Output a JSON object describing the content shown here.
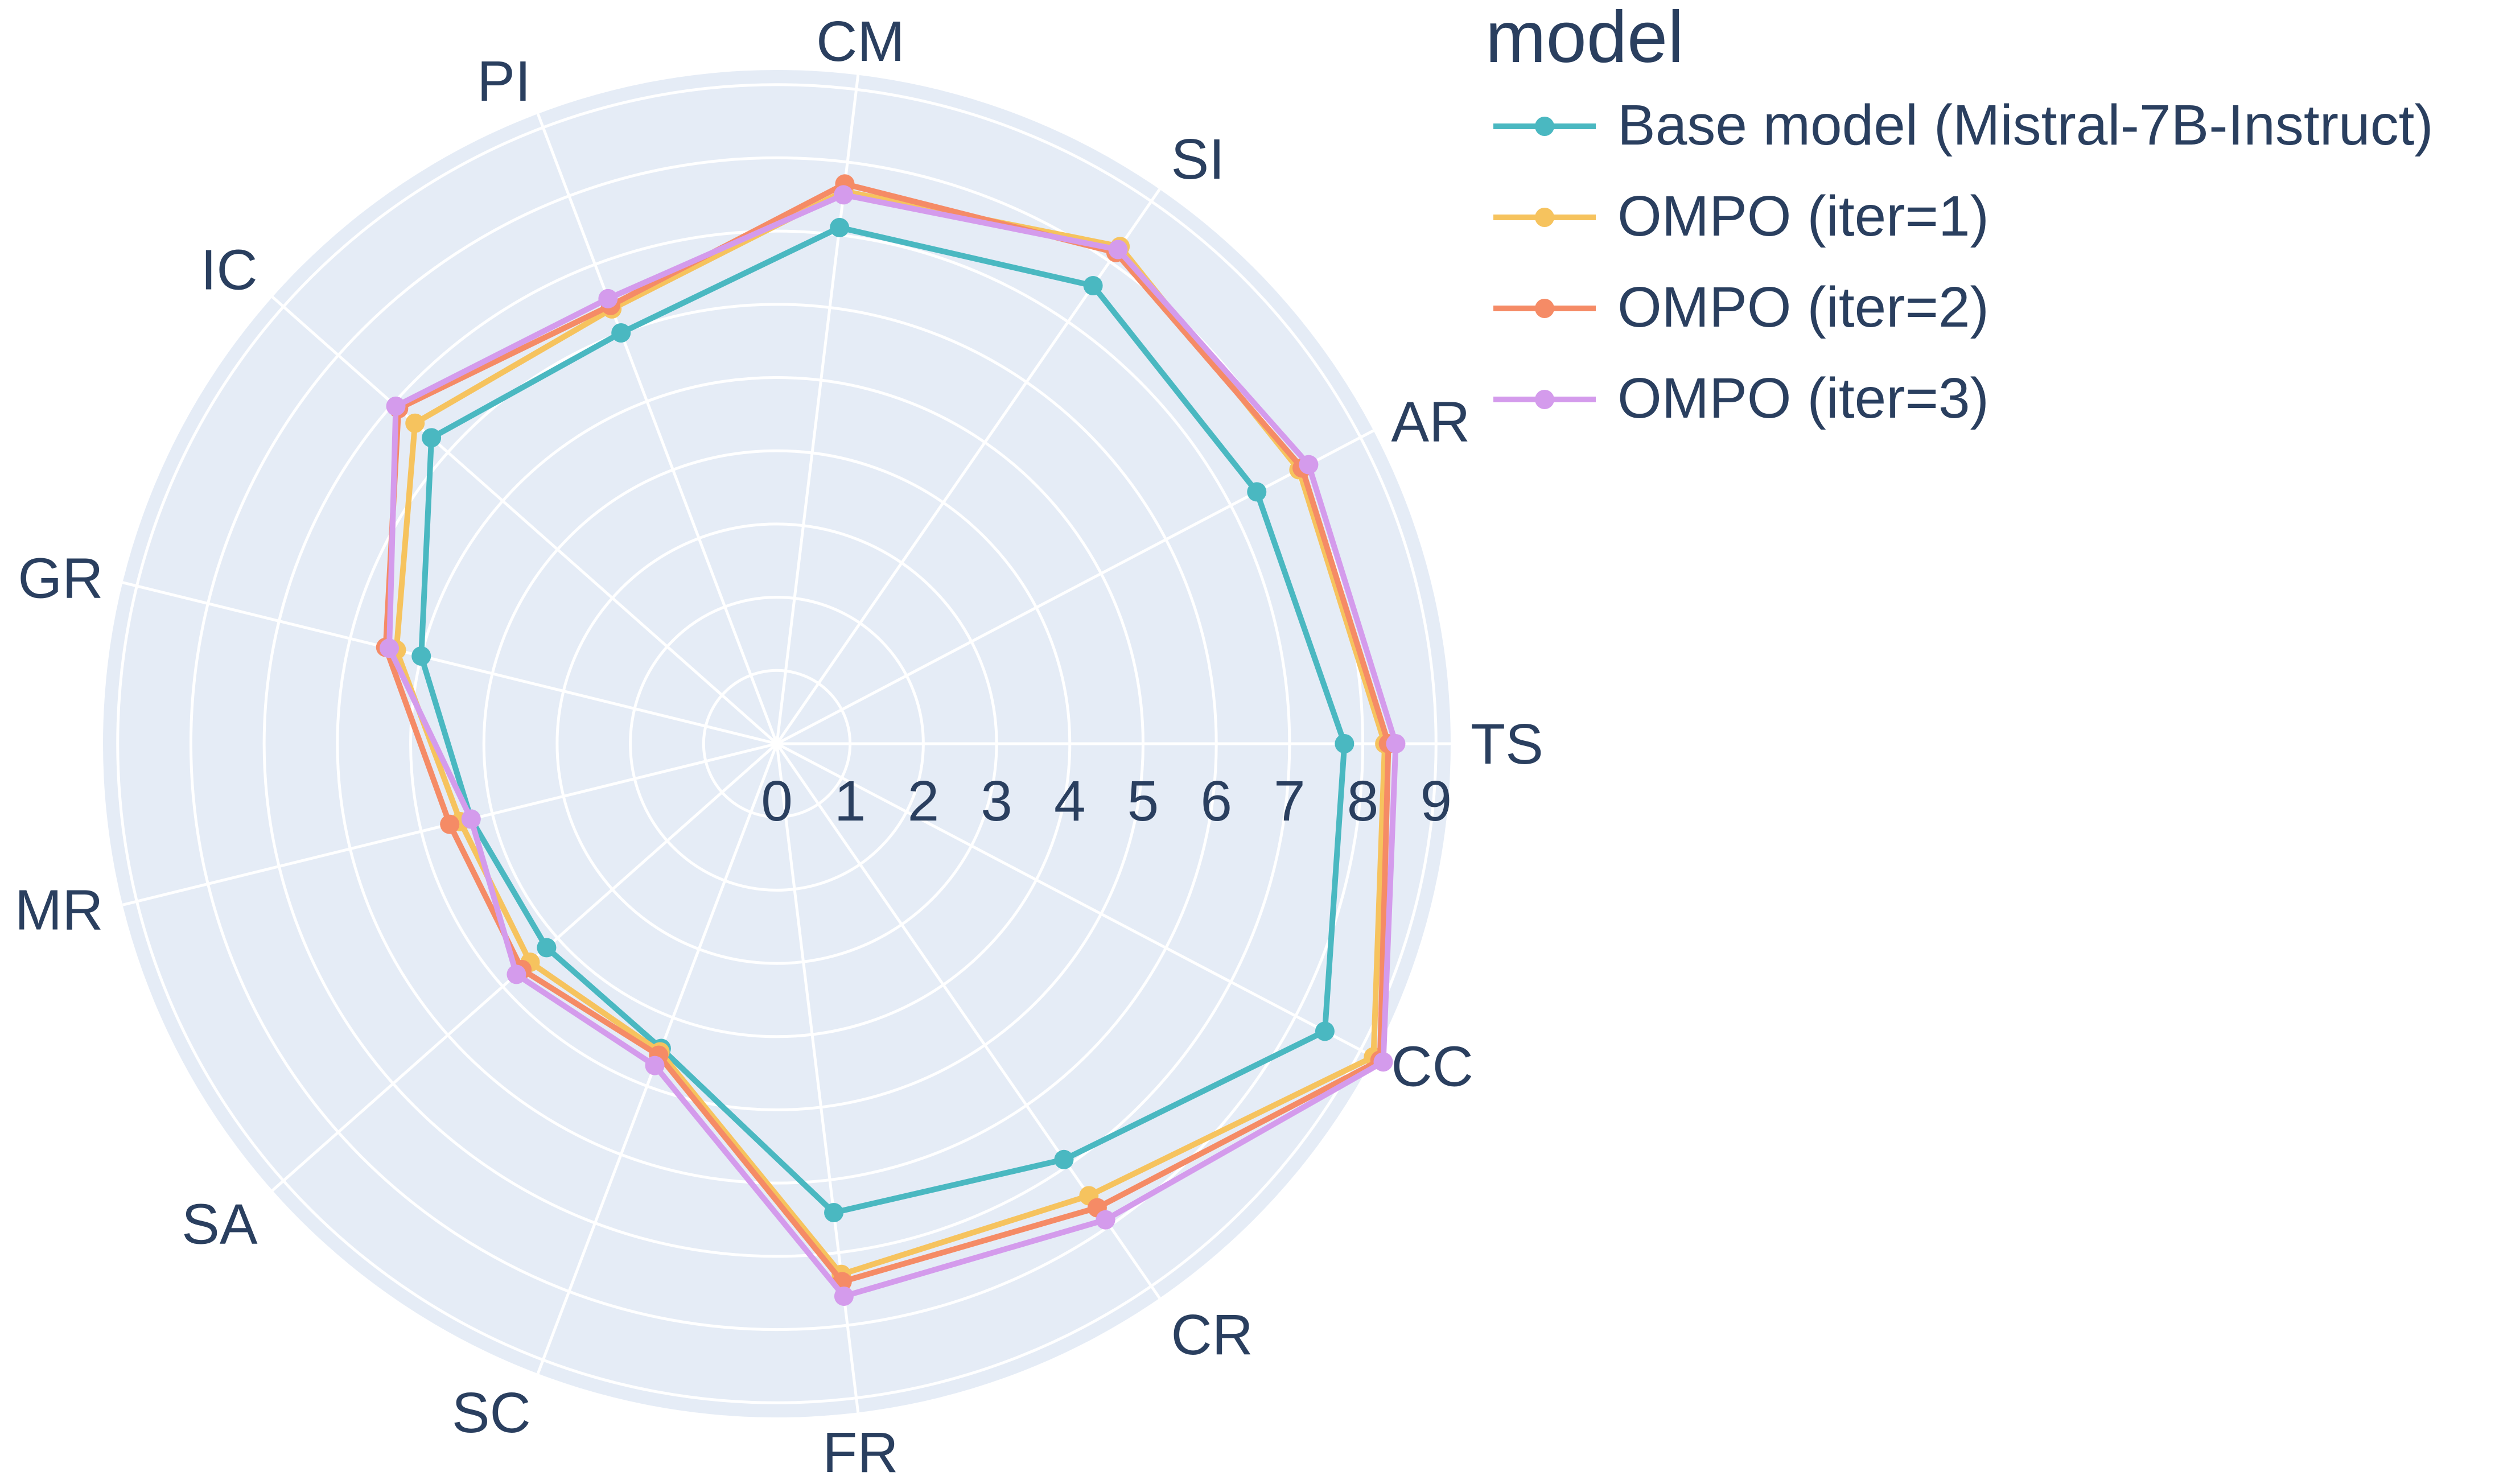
{
  "chart_data": {
    "type": "radar",
    "categories": [
      "TS",
      "AR",
      "SI",
      "CM",
      "PI",
      "IC",
      "GR",
      "MR",
      "SA",
      "SC",
      "FR",
      "CR",
      "CC"
    ],
    "radial_ticks": [
      "0",
      "1",
      "2",
      "3",
      "4",
      "5",
      "6",
      "7",
      "8",
      "9"
    ],
    "radial_range": [
      0,
      9.2
    ],
    "grid": true,
    "legend_title": "model",
    "legend_placement": "top-right",
    "series": [
      {
        "name": "Base model (Mistral-7B-Instruct)",
        "color": "#4ab8c1",
        "values": [
          7.75,
          7.4,
          7.6,
          7.1,
          6.0,
          6.3,
          5.0,
          4.3,
          4.2,
          4.45,
          6.45,
          6.9,
          8.45
        ]
      },
      {
        "name": "OMPO (iter=1)",
        "color": "#f6c35e",
        "values": [
          8.3,
          8.05,
          8.25,
          7.6,
          6.35,
          6.6,
          5.35,
          4.45,
          4.5,
          4.5,
          7.3,
          7.5,
          9.2
        ]
      },
      {
        "name": "OMPO (iter=2)",
        "color": "#f58b66",
        "values": [
          8.35,
          8.1,
          8.15,
          7.7,
          6.4,
          6.9,
          5.5,
          4.6,
          4.65,
          4.55,
          7.4,
          7.7,
          9.3
        ]
      },
      {
        "name": "OMPO (iter=3)",
        "color": "#d49bec",
        "values": [
          8.45,
          8.2,
          8.2,
          7.55,
          6.5,
          6.95,
          5.45,
          4.3,
          4.75,
          4.7,
          7.6,
          7.9,
          9.35
        ]
      }
    ]
  }
}
